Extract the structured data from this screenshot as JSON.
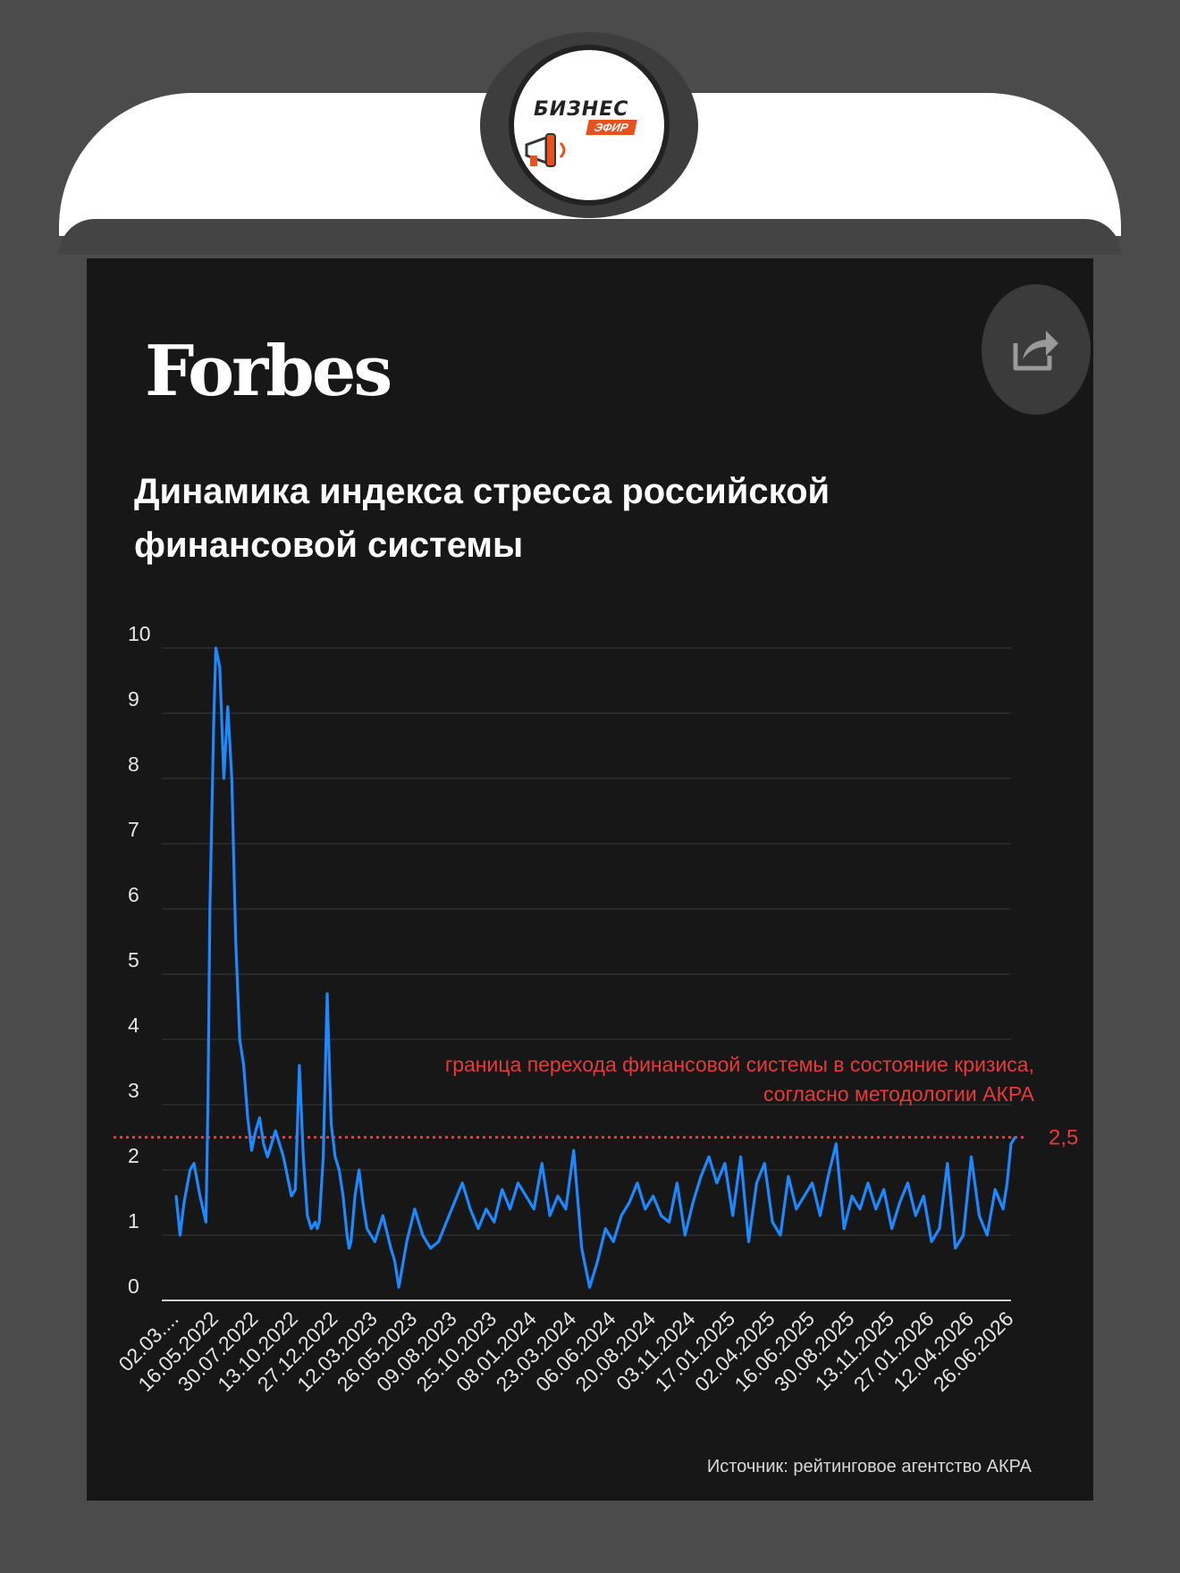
{
  "header": {
    "logo": {
      "text": "БИЗНЕС",
      "subtext": "ЭФИР",
      "icon": "megaphone-icon"
    }
  },
  "card": {
    "brand": "Forbes",
    "title": "Динамика индекса стресса российской финансовой системы",
    "share_icon": "share-icon",
    "source": "Источник: рейтинговое агентство АКРА"
  },
  "colors": {
    "line": "#1e88ff",
    "threshold": "#e8393d",
    "background": "#171717",
    "frame": "#4b4b4b"
  },
  "chart_data": {
    "type": "line",
    "title": "Динамика индекса стресса российской финансовой системы",
    "xlabel": "",
    "ylabel": "",
    "ylim": [
      0,
      10
    ],
    "yticks": [
      "0",
      "1",
      "2",
      "3",
      "4",
      "5",
      "6",
      "7",
      "8",
      "9",
      "10"
    ],
    "xticks": [
      "02.03....",
      "16.05.2022",
      "30.07.2022",
      "13.10.2022",
      "27.12.2022",
      "12.03.2023",
      "26.05.2023",
      "09.08.2023",
      "25.10.2023",
      "08.01.2024",
      "23.03.2024",
      "06.06.2024",
      "20.08.2024",
      "03.11.2024",
      "17.01.2025",
      "02.04.2025",
      "16.06.2025",
      "30.08.2025",
      "13.11.2025",
      "27.01.2026",
      "12.04.2026",
      "26.06.2026"
    ],
    "grid": true,
    "threshold": {
      "value": 2.5,
      "label": "2,5",
      "annotation": "граница перехода финансовой системы в состояние кризиса, согласно методологии АКРА"
    },
    "series": [
      {
        "x": [
          0.0,
          0.1,
          0.2,
          0.35,
          0.45,
          0.6,
          0.75,
          0.8,
          0.85,
          0.95,
          1.0,
          1.1,
          1.2,
          1.3,
          1.4,
          1.5,
          1.6,
          1.7,
          1.8,
          1.9,
          2.0,
          2.1,
          2.2,
          2.3,
          2.5,
          2.7,
          2.9,
          3.0,
          3.1,
          3.2,
          3.3,
          3.4,
          3.5,
          3.55,
          3.6,
          3.7,
          3.8,
          3.9,
          4.0,
          4.1,
          4.2,
          4.25,
          4.3,
          4.35,
          4.4,
          4.5,
          4.6,
          4.7,
          4.8,
          5.0,
          5.2,
          5.4,
          5.5,
          5.6,
          5.8,
          6.0,
          6.2,
          6.4,
          6.6,
          6.8,
          7.0,
          7.2,
          7.4,
          7.6,
          7.8,
          8.0,
          8.2,
          8.4,
          8.6,
          8.8,
          9.0,
          9.2,
          9.4,
          9.6,
          9.8,
          10.0,
          10.2,
          10.4,
          10.6,
          10.8,
          11.0,
          11.2,
          11.4,
          11.6,
          11.8,
          12.0,
          12.2,
          12.4,
          12.6,
          12.8,
          13.0,
          13.2,
          13.4,
          13.6,
          13.8,
          14.0,
          14.2,
          14.4,
          14.6,
          14.8,
          15.0,
          15.2,
          15.4,
          15.6,
          15.8,
          16.0,
          16.2,
          16.4,
          16.6,
          16.8,
          17.0,
          17.2,
          17.4,
          17.6,
          17.8,
          18.0,
          18.2,
          18.4,
          18.6,
          18.8,
          19.0,
          19.2,
          19.4,
          19.6,
          19.8,
          20.0,
          20.2,
          20.4,
          20.6,
          20.8,
          20.9,
          21.0,
          21.1
        ],
        "y": [
          1.6,
          1.0,
          1.5,
          2.0,
          2.1,
          1.6,
          1.2,
          3.0,
          6.0,
          9.0,
          10.0,
          9.7,
          8.0,
          9.1,
          8.0,
          5.5,
          4.0,
          3.6,
          2.8,
          2.3,
          2.6,
          2.8,
          2.4,
          2.2,
          2.6,
          2.2,
          1.6,
          1.7,
          3.6,
          2.2,
          1.3,
          1.1,
          1.2,
          1.1,
          1.2,
          2.2,
          4.7,
          2.7,
          2.2,
          2.0,
          1.6,
          1.3,
          1.0,
          0.8,
          0.9,
          1.6,
          2.0,
          1.5,
          1.1,
          0.9,
          1.3,
          0.8,
          0.6,
          0.2,
          0.9,
          1.4,
          1.0,
          0.8,
          0.9,
          1.2,
          1.5,
          1.8,
          1.4,
          1.1,
          1.4,
          1.2,
          1.7,
          1.4,
          1.8,
          1.6,
          1.4,
          2.1,
          1.3,
          1.6,
          1.4,
          2.3,
          0.8,
          0.2,
          0.6,
          1.1,
          0.9,
          1.3,
          1.5,
          1.8,
          1.4,
          1.6,
          1.3,
          1.2,
          1.8,
          1.0,
          1.5,
          1.9,
          2.2,
          1.8,
          2.1,
          1.3,
          2.2,
          0.9,
          1.8,
          2.1,
          1.2,
          1.0,
          1.9,
          1.4,
          1.6,
          1.8,
          1.3,
          1.9,
          2.4,
          1.1,
          1.6,
          1.4,
          1.8,
          1.4,
          1.7,
          1.1,
          1.5,
          1.8,
          1.3,
          1.6,
          0.9,
          1.1,
          2.1,
          0.8,
          1.0,
          2.2,
          1.3,
          1.0,
          1.7,
          1.4,
          1.8,
          2.4,
          2.5
        ]
      }
    ]
  }
}
